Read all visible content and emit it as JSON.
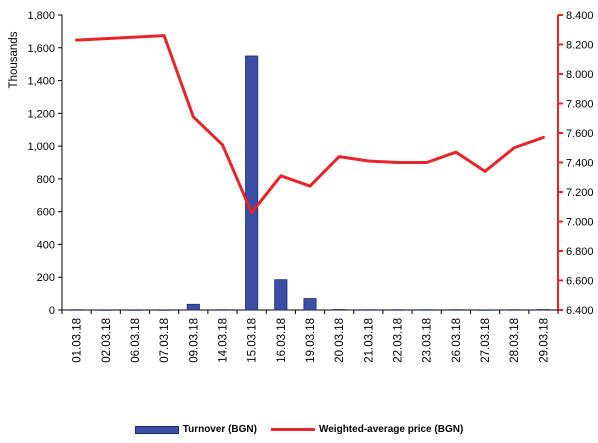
{
  "chart_data": {
    "type": "bar",
    "categories": [
      "01.03.18",
      "02.03.18",
      "06.03.18",
      "07.03.18",
      "09.03.18",
      "14.03.18",
      "15.03.18",
      "16.03.18",
      "19.03.18",
      "20.03.18",
      "21.03.18",
      "22.03.18",
      "23.03.18",
      "26.03.18",
      "27.03.18",
      "28.03.18",
      "29.03.18"
    ],
    "series": [
      {
        "name": "Turnover (BGN)",
        "type": "bar",
        "axis": "left",
        "color": "#3a4fa5",
        "values": [
          2,
          1,
          1,
          1,
          35,
          2,
          1550,
          185,
          70,
          3,
          2,
          2,
          2,
          2,
          1,
          2,
          3
        ]
      },
      {
        "name": "Weighted-average price (BGN)",
        "type": "line",
        "axis": "right",
        "color": "#e8242b",
        "values": [
          8.23,
          8.24,
          8.25,
          8.26,
          7.71,
          7.52,
          7.06,
          7.31,
          7.24,
          7.44,
          7.41,
          7.4,
          7.4,
          7.47,
          7.34,
          7.5,
          7.57
        ]
      }
    ],
    "ylabel": "Thousands",
    "ylim": [
      0,
      1800
    ],
    "yticks": [
      0,
      200,
      400,
      600,
      800,
      1000,
      1200,
      1400,
      1600,
      1800
    ],
    "ytick_labels": [
      "0",
      "200",
      "400",
      "600",
      "800",
      "1,000",
      "1,200",
      "1,400",
      "1,600",
      "1,800"
    ],
    "y2lim": [
      6.4,
      8.4
    ],
    "y2ticks": [
      6.4,
      6.6,
      6.8,
      7.0,
      7.2,
      7.4,
      7.6,
      7.8,
      8.0,
      8.2,
      8.4
    ],
    "y2tick_labels": [
      "6.400",
      "6.600",
      "6.800",
      "7.000",
      "7.200",
      "7.400",
      "7.600",
      "7.800",
      "8.000",
      "8.200",
      "8.400"
    ],
    "grid": false,
    "legend": "bottom-center"
  }
}
